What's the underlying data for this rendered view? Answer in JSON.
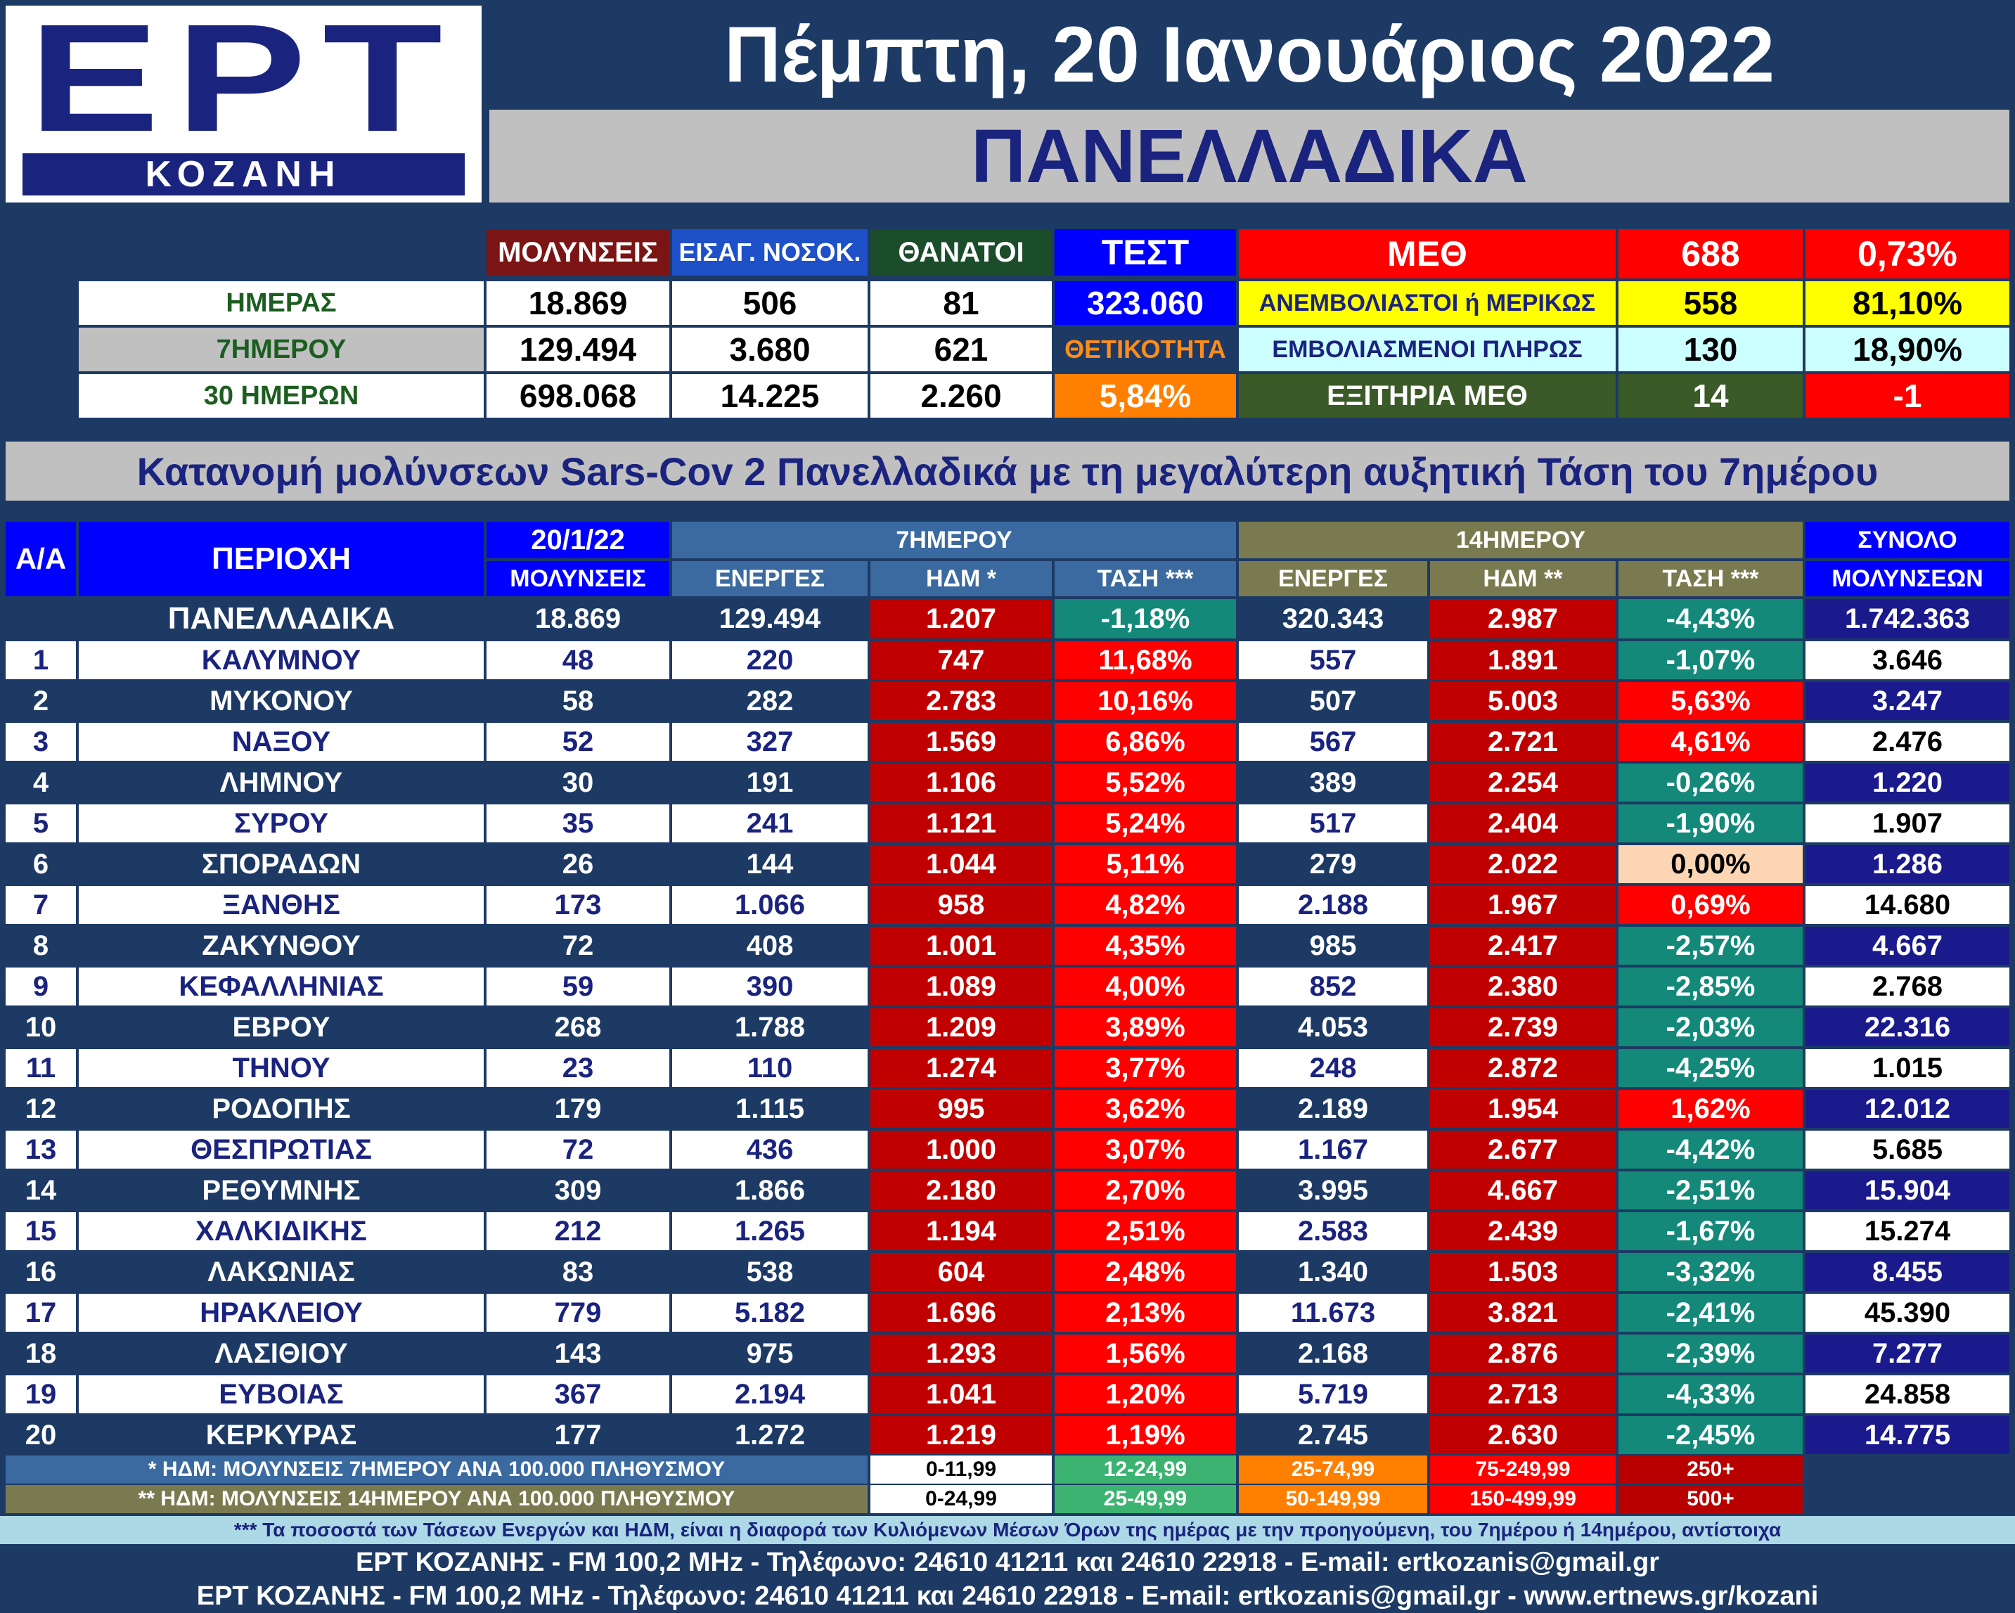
{
  "header": {
    "logo_main": "ΕΡΤ",
    "logo_sub": "ΚΟΖΑΝΗ",
    "date": "Πέμπτη, 20 Ιανουάριος 2022",
    "section": "ΠΑΝΕΛΛΑΔΙΚΑ"
  },
  "summary": {
    "col_infections": "ΜΟΛΥΝΣΕΙΣ",
    "col_admissions": "ΕΙΣΑΓ. ΝΟΣΟΚ.",
    "col_deaths": "ΘΑΝΑΤΟΙ",
    "col_tests": "ΤΕΣΤ",
    "rows": [
      {
        "label": "ΗΜΕΡΑΣ",
        "infections": "18.869",
        "admissions": "506",
        "deaths": "81"
      },
      {
        "label": "7ΗΜΕΡΟΥ",
        "infections": "129.494",
        "admissions": "3.680",
        "deaths": "621"
      },
      {
        "label": "30 ΗΜΕΡΩΝ",
        "infections": "698.068",
        "admissions": "14.225",
        "deaths": "2.260"
      }
    ],
    "tests_value": "323.060",
    "positivity_label": "ΘΕΤΙΚΟΤΗΤΑ",
    "positivity_value": "5,84%",
    "icu_label": "ΜΕΘ",
    "icu_total": "688",
    "icu_pct": "0,73%",
    "unvacc_label": "ΑΝΕΜΒΟΛΙΑΣΤΟΙ ή ΜΕΡΙΚΩΣ",
    "unvacc_count": "558",
    "unvacc_pct": "81,10%",
    "vacc_label": "ΕΜΒΟΛΙΑΣΜΕΝΟΙ ΠΛΗΡΩΣ",
    "vacc_count": "130",
    "vacc_pct": "18,90%",
    "icu_discharge_label": "ΕΞΙΤΗΡΙΑ ΜΕΘ",
    "icu_discharge_count": "14",
    "icu_discharge_change": "-1"
  },
  "distribution_title": "Κατανομή μολύνσεων Sars-Cov 2 Πανελλαδικά με τη μεγαλύτερη αυξητική Τάση του 7ημέρου",
  "table": {
    "h_aa": "Α/Α",
    "h_region": "ΠΕΡΙΟΧΗ",
    "h_date": "20/1/22",
    "h_infections": "ΜΟΛΥΝΣΕΙΣ",
    "h_7day": "7ΗΜΕΡΟΥ",
    "h_14day": "14ΗΜΕΡΟΥ",
    "h_active": "ΕΝΕΡΓΕΣ",
    "h_idm7": "ΗΔΜ *",
    "h_trend7": "ΤΑΣΗ ***",
    "h_active14": "ΕΝΕΡΓΕΣ",
    "h_idm14": "ΗΔΜ **",
    "h_trend14": "ΤΑΣΗ ***",
    "h_total1": "ΣΥΝΟΛΟ",
    "h_total2": "ΜΟΛΥΝΣΕΩΝ",
    "national": {
      "name": "ΠΑΝΕΛΛΑΔΙΚΑ",
      "inf": "18.869",
      "a7": "129.494",
      "i7": "1.207",
      "t7": "-1,18%",
      "a14": "320.343",
      "i14": "2.987",
      "t14": "-4,43%",
      "tot": "1.742.363"
    },
    "rows": [
      {
        "n": "1",
        "name": "ΚΑΛΥΜΝΟΥ",
        "inf": "48",
        "a7": "220",
        "i7": "747",
        "t7": "11,68%",
        "a14": "557",
        "i14": "1.891",
        "t14": "-1,07%",
        "tot": "3.646"
      },
      {
        "n": "2",
        "name": "ΜΥΚΟΝΟΥ",
        "inf": "58",
        "a7": "282",
        "i7": "2.783",
        "t7": "10,16%",
        "a14": "507",
        "i14": "5.003",
        "t14": "5,63%",
        "tot": "3.247"
      },
      {
        "n": "3",
        "name": "ΝΑΞΟΥ",
        "inf": "52",
        "a7": "327",
        "i7": "1.569",
        "t7": "6,86%",
        "a14": "567",
        "i14": "2.721",
        "t14": "4,61%",
        "tot": "2.476"
      },
      {
        "n": "4",
        "name": "ΛΗΜΝΟΥ",
        "inf": "30",
        "a7": "191",
        "i7": "1.106",
        "t7": "5,52%",
        "a14": "389",
        "i14": "2.254",
        "t14": "-0,26%",
        "tot": "1.220"
      },
      {
        "n": "5",
        "name": "ΣΥΡΟΥ",
        "inf": "35",
        "a7": "241",
        "i7": "1.121",
        "t7": "5,24%",
        "a14": "517",
        "i14": "2.404",
        "t14": "-1,90%",
        "tot": "1.907"
      },
      {
        "n": "6",
        "name": "ΣΠΟΡΑΔΩΝ",
        "inf": "26",
        "a7": "144",
        "i7": "1.044",
        "t7": "5,11%",
        "a14": "279",
        "i14": "2.022",
        "t14": "0,00%",
        "tot": "1.286"
      },
      {
        "n": "7",
        "name": "ΞΑΝΘΗΣ",
        "inf": "173",
        "a7": "1.066",
        "i7": "958",
        "t7": "4,82%",
        "a14": "2.188",
        "i14": "1.967",
        "t14": "0,69%",
        "tot": "14.680"
      },
      {
        "n": "8",
        "name": "ΖΑΚΥΝΘΟΥ",
        "inf": "72",
        "a7": "408",
        "i7": "1.001",
        "t7": "4,35%",
        "a14": "985",
        "i14": "2.417",
        "t14": "-2,57%",
        "tot": "4.667"
      },
      {
        "n": "9",
        "name": "ΚΕΦΑΛΛΗΝΙΑΣ",
        "inf": "59",
        "a7": "390",
        "i7": "1.089",
        "t7": "4,00%",
        "a14": "852",
        "i14": "2.380",
        "t14": "-2,85%",
        "tot": "2.768"
      },
      {
        "n": "10",
        "name": "ΕΒΡΟΥ",
        "inf": "268",
        "a7": "1.788",
        "i7": "1.209",
        "t7": "3,89%",
        "a14": "4.053",
        "i14": "2.739",
        "t14": "-2,03%",
        "tot": "22.316"
      },
      {
        "n": "11",
        "name": "ΤΗΝΟΥ",
        "inf": "23",
        "a7": "110",
        "i7": "1.274",
        "t7": "3,77%",
        "a14": "248",
        "i14": "2.872",
        "t14": "-4,25%",
        "tot": "1.015"
      },
      {
        "n": "12",
        "name": "ΡΟΔΟΠΗΣ",
        "inf": "179",
        "a7": "1.115",
        "i7": "995",
        "t7": "3,62%",
        "a14": "2.189",
        "i14": "1.954",
        "t14": "1,62%",
        "tot": "12.012"
      },
      {
        "n": "13",
        "name": "ΘΕΣΠΡΩΤΙΑΣ",
        "inf": "72",
        "a7": "436",
        "i7": "1.000",
        "t7": "3,07%",
        "a14": "1.167",
        "i14": "2.677",
        "t14": "-4,42%",
        "tot": "5.685"
      },
      {
        "n": "14",
        "name": "ΡΕΘΥΜΝΗΣ",
        "inf": "309",
        "a7": "1.866",
        "i7": "2.180",
        "t7": "2,70%",
        "a14": "3.995",
        "i14": "4.667",
        "t14": "-2,51%",
        "tot": "15.904"
      },
      {
        "n": "15",
        "name": "ΧΑΛΚΙΔΙΚΗΣ",
        "inf": "212",
        "a7": "1.265",
        "i7": "1.194",
        "t7": "2,51%",
        "a14": "2.583",
        "i14": "2.439",
        "t14": "-1,67%",
        "tot": "15.274"
      },
      {
        "n": "16",
        "name": "ΛΑΚΩΝΙΑΣ",
        "inf": "83",
        "a7": "538",
        "i7": "604",
        "t7": "2,48%",
        "a14": "1.340",
        "i14": "1.503",
        "t14": "-3,32%",
        "tot": "8.455"
      },
      {
        "n": "17",
        "name": "ΗΡΑΚΛΕΙΟΥ",
        "inf": "779",
        "a7": "5.182",
        "i7": "1.696",
        "t7": "2,13%",
        "a14": "11.673",
        "i14": "3.821",
        "t14": "-2,41%",
        "tot": "45.390"
      },
      {
        "n": "18",
        "name": "ΛΑΣΙΘΙΟΥ",
        "inf": "143",
        "a7": "975",
        "i7": "1.293",
        "t7": "1,56%",
        "a14": "2.168",
        "i14": "2.876",
        "t14": "-2,39%",
        "tot": "7.277"
      },
      {
        "n": "19",
        "name": "ΕΥΒΟΙΑΣ",
        "inf": "367",
        "a7": "2.194",
        "i7": "1.041",
        "t7": "1,20%",
        "a14": "5.719",
        "i14": "2.713",
        "t14": "-4,33%",
        "tot": "24.858"
      },
      {
        "n": "20",
        "name": "ΚΕΡΚΥΡΑΣ",
        "inf": "177",
        "a7": "1.272",
        "i7": "1.219",
        "t7": "1,19%",
        "a14": "2.745",
        "i14": "2.630",
        "t14": "-2,45%",
        "tot": "14.775"
      }
    ]
  },
  "legend": {
    "idm7_note": "* ΗΔΜ: ΜΟΛΥΝΣΕΙΣ 7ΗΜΕΡΟΥ ΑΝΑ 100.000 ΠΛΗΘΥΣΜΟΥ",
    "idm14_note": "** ΗΔΜ: ΜΟΛΥΝΣΕΙΣ 14ΗΜΕΡΟΥ ΑΝΑ 100.000 ΠΛΗΘΥΣΜΟΥ",
    "ranges7": [
      "0-11,99",
      "12-24,99",
      "25-74,99",
      "75-249,99",
      "250+"
    ],
    "ranges14": [
      "0-24,99",
      "25-49,99",
      "50-149,99",
      "150-499,99",
      "500+"
    ],
    "range_colors": [
      "#ffffff",
      "#3cb371",
      "#ff7f00",
      "#ff0000",
      "#b80000"
    ]
  },
  "footer": {
    "trend_note": "*** Τα ποσοστά των Τάσεων Ενεργών και ΗΔΜ, είναι η διαφορά των Κυλιόμενων Μέσων Όρων της ημέρας με την προηγούμενη, του 7ημέρου ή 14ημέρου, αντίστοιχα",
    "contact1": "ΕΡΤ ΚΟΖΑΝΗΣ - FM 100,2 MHz - Τηλέφωνο:  24610 41211 και 24610 22918 - E-mail: ertkozanis@gmail.gr",
    "contact2": "ΕΡΤ ΚΟΖΑΝΗΣ - FM 100,2 MHz - Τηλέφωνο:  24610 41211 και 24610 22918 - E-mail: ertkozanis@gmail.gr - www.ertnews.gr/kozani"
  },
  "colors": {
    "navy": "#1d3a64",
    "brand_blue": "#1a237e",
    "idm_red": "#c00000",
    "trend_up": "#ff0000",
    "trend_down": "#14897a",
    "trend_zero": "#fcd5b4",
    "total_blue": "#1a1a8c",
    "header_7day": "#3a6aa0",
    "header_14day": "#7a7a50"
  }
}
